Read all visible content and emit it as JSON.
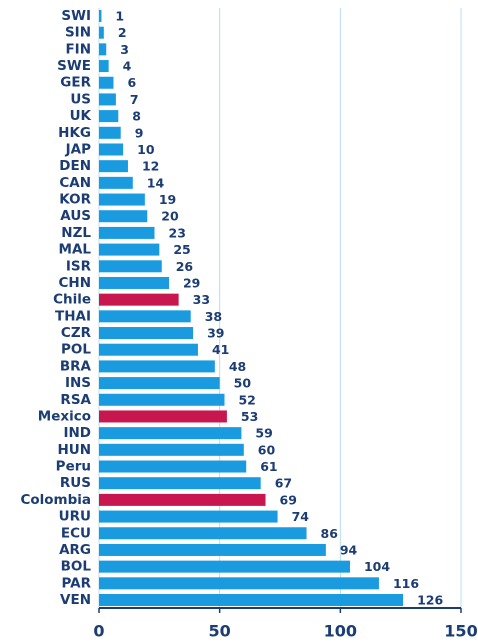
{
  "chart_data": {
    "type": "hbar",
    "categories": [
      "SWI",
      "SIN",
      "FIN",
      "SWE",
      "GER",
      "US",
      "UK",
      "HKG",
      "JAP",
      "DEN",
      "CAN",
      "KOR",
      "AUS",
      "NZL",
      "MAL",
      "ISR",
      "CHN",
      "Chile",
      "THAI",
      "CZR",
      "POL",
      "BRA",
      "INS",
      "RSA",
      "Mexico",
      "IND",
      "HUN",
      "Peru",
      "RUS",
      "Colombia",
      "URU",
      "ECU",
      "ARG",
      "BOL",
      "PAR",
      "VEN"
    ],
    "values": [
      1,
      2,
      3,
      4,
      6,
      7,
      8,
      9,
      10,
      12,
      14,
      19,
      20,
      23,
      25,
      26,
      29,
      33,
      38,
      39,
      41,
      48,
      50,
      52,
      53,
      59,
      60,
      61,
      67,
      69,
      74,
      86,
      94,
      104,
      116,
      126
    ],
    "colors": [
      "#1a9be0",
      "#1a9be0",
      "#1a9be0",
      "#1a9be0",
      "#1a9be0",
      "#1a9be0",
      "#1a9be0",
      "#1a9be0",
      "#1a9be0",
      "#1a9be0",
      "#1a9be0",
      "#1a9be0",
      "#1a9be0",
      "#1a9be0",
      "#1a9be0",
      "#1a9be0",
      "#1a9be0",
      "#c8174f",
      "#1a9be0",
      "#1a9be0",
      "#1a9be0",
      "#1a9be0",
      "#1a9be0",
      "#1a9be0",
      "#c8174f",
      "#1a9be0",
      "#1a9be0",
      "#1a9be0",
      "#1a9be0",
      "#c8174f",
      "#1a9be0",
      "#1a9be0",
      "#1a9be0",
      "#1a9be0",
      "#1a9be0",
      "#1a9be0"
    ],
    "xlim": [
      0,
      150
    ],
    "xticks": [
      0,
      50,
      100,
      150
    ],
    "grid": true
  }
}
